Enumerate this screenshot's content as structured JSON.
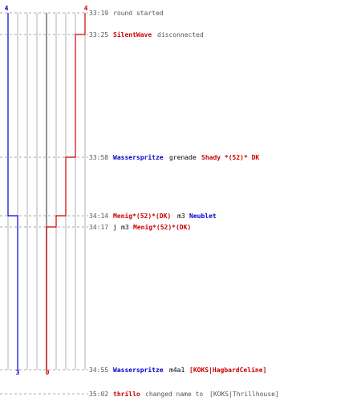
{
  "colors": {
    "blue": "#0000cc",
    "red": "#cc0000",
    "grid": "#b0b0b0",
    "center": "#707070",
    "dash": "#a8a8a8",
    "time": "#555555",
    "text": "#000000",
    "muted": "#555555"
  },
  "scores": {
    "blue_top": "4",
    "red_top": "4",
    "blue_bottom": "3",
    "red_bottom": "0"
  },
  "events": [
    {
      "time": "33:19",
      "parts": [
        {
          "text": "round started",
          "style": "muted"
        }
      ]
    },
    {
      "time": "33:25",
      "parts": [
        {
          "text": "SilentWave",
          "style": "red"
        },
        {
          "text": "disconnected",
          "style": "muted"
        }
      ]
    },
    {
      "time": "33:58",
      "parts": [
        {
          "text": "Wasserspritze",
          "style": "blue"
        },
        {
          "text": "grenade",
          "style": "text"
        },
        {
          "text": "Shady *(52)* DK",
          "style": "red"
        }
      ]
    },
    {
      "time": "34:14",
      "parts": [
        {
          "text": "Menig*(52)*(DK)",
          "style": "red"
        },
        {
          "text": "m3",
          "style": "text"
        },
        {
          "text": "Neublet",
          "style": "blue"
        }
      ]
    },
    {
      "time": "34:17",
      "parts": [
        {
          "text": "j",
          "style": "text"
        },
        {
          "text": "m3",
          "style": "text"
        },
        {
          "text": "Menig*(52)*(DK)",
          "style": "red"
        }
      ]
    },
    {
      "time": "34:55",
      "parts": [
        {
          "text": "Wasserspritze",
          "style": "blue"
        },
        {
          "text": "m4a1",
          "style": "text"
        },
        {
          "text": "[KOKS|HagbardCeline]",
          "style": "red"
        }
      ]
    },
    {
      "time": "35:02",
      "parts": [
        {
          "text": "thrillo",
          "style": "red"
        },
        {
          "text": "changed name to",
          "style": "muted"
        },
        {
          "text": "[KOKS|Thrillhouse]",
          "style": "muted"
        }
      ]
    }
  ]
}
